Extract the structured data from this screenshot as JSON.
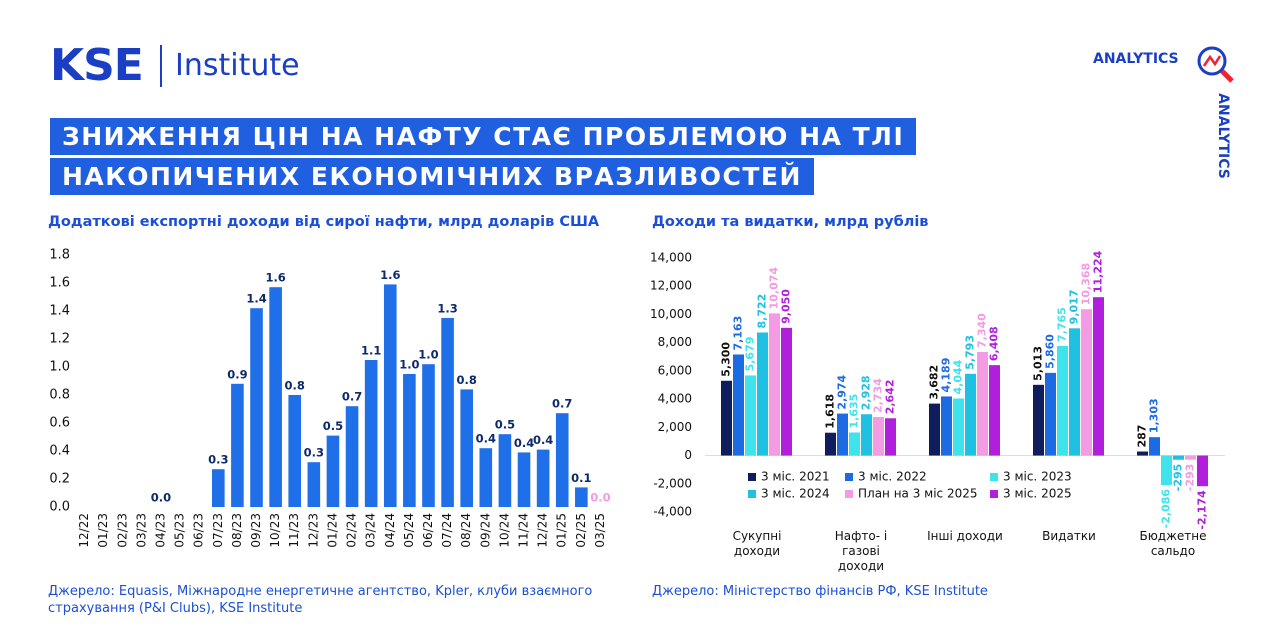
{
  "header": {
    "logo": "KSE",
    "logo_sub": "Institute",
    "badge": "ANALYTICS",
    "title_lines": [
      "ЗНИЖЕННЯ ЦІН НА НАФТУ СТАЄ ПРОБЛЕМОЮ НА ТЛІ",
      "НАКОПИЧЕНИХ ЕКОНОМІЧНИХ ВРАЗЛИВОСТЕЙ"
    ]
  },
  "chart_data": [
    {
      "type": "bar",
      "title": "Додаткові експортні доходи від сирої нафти, млрд доларів США",
      "categories": [
        "12/22",
        "01/23",
        "02/23",
        "03/23",
        "04/23",
        "05/23",
        "06/23",
        "07/23",
        "08/23",
        "09/23",
        "10/23",
        "11/23",
        "12/23",
        "01/24",
        "02/24",
        "03/24",
        "04/24",
        "05/24",
        "06/24",
        "07/24",
        "08/24",
        "09/24",
        "10/24",
        "11/24",
        "12/24",
        "01/25",
        "02/25",
        "03/25"
      ],
      "values": [
        0,
        0,
        0,
        0,
        0,
        0,
        0,
        0.27,
        0.88,
        1.42,
        1.57,
        0.8,
        0.32,
        0.51,
        0.72,
        1.05,
        1.59,
        0.95,
        1.02,
        1.35,
        0.84,
        0.42,
        0.52,
        0.39,
        0.41,
        0.67,
        0.14,
        0
      ],
      "value_labels": [
        null,
        null,
        null,
        null,
        "0.0",
        null,
        null,
        "0.3",
        "0.9",
        "1.4",
        "1.6",
        "0.8",
        "0.3",
        "0.5",
        "0.7",
        "1.1",
        "1.6",
        "1.0",
        "1.0",
        "1.3",
        "0.8",
        "0.4",
        "0.5",
        "0.4",
        "0.4",
        "0.7",
        "0.1",
        "0.0"
      ],
      "color": "#1f6fe8",
      "ylim": [
        0,
        1.8
      ],
      "yticks": [
        {
          "value": 0,
          "label": "0.0"
        },
        0.2,
        0.4,
        0.6,
        0.8,
        {
          "value": 1,
          "label": "1.0"
        },
        1.2,
        1.4,
        1.6,
        1.8
      ],
      "source": "Джерело: Equasis, Міжнародне енергетичне агентство, Kpler, клуби взаємного страхування (P&I Clubs), KSE Institute"
    },
    {
      "type": "grouped_bar",
      "title": "Доходи та видатки, млрд рублів",
      "categories": [
        "Сукупні доходи",
        "Нафто- і газові доходи",
        "Інші доходи",
        "Видатки",
        "Бюджетне сальдо"
      ],
      "series": [
        {
          "name": "3 міс. 2021",
          "color": "#0f1d5c",
          "values": [
            5300,
            1618,
            3682,
            5013,
            287
          ],
          "value_labels": [
            "5,300",
            "1,618",
            "3,682",
            "5,013",
            "287"
          ]
        },
        {
          "name": "3 міс. 2022",
          "color": "#1d6be3",
          "values": [
            7163,
            2974,
            4189,
            5860,
            1303
          ],
          "value_labels": [
            "7,163",
            "2,974",
            "4,189",
            "5,860",
            "1,303"
          ]
        },
        {
          "name": "3 міс. 2023",
          "color": "#3fe3ec",
          "values": [
            5679,
            1635,
            4044,
            7765,
            -2086
          ],
          "value_labels": [
            "5,679",
            "1,635",
            "4,044",
            "7,765",
            "-2,086"
          ]
        },
        {
          "name": "3 міс. 2024",
          "color": "#1fc1e3",
          "values": [
            8722,
            2928,
            5793,
            9017,
            -295
          ],
          "value_labels": [
            "8,722",
            "2,928",
            "5,793",
            "9,017",
            "-295"
          ]
        },
        {
          "name": "План на 3 міс 2025",
          "color": "#f39be3",
          "values": [
            10074,
            2734,
            7340,
            10368,
            -293
          ],
          "value_labels": [
            "10,074",
            "2,734",
            "7,340",
            "10,368",
            "-293"
          ]
        },
        {
          "name": "3 міс. 2025",
          "color": "#b01fdc",
          "values": [
            9050,
            2642,
            6408,
            11224,
            -2174
          ],
          "value_labels": [
            "9,050",
            "2,642",
            "6,408",
            "11,224",
            "-2,174"
          ]
        }
      ],
      "ylim": [
        -4000,
        14000
      ],
      "yticks": [
        {
          "value": -4000,
          "label": "-4,000"
        },
        {
          "value": -2000,
          "label": "-2,000"
        },
        0,
        {
          "value": 2000,
          "label": "2,000"
        },
        {
          "value": 4000,
          "label": "4,000"
        },
        {
          "value": 6000,
          "label": "6,000"
        },
        {
          "value": 8000,
          "label": "8,000"
        },
        {
          "value": 10000,
          "label": "10,000"
        },
        {
          "value": 12000,
          "label": "12,000"
        },
        {
          "value": 14000,
          "label": "14,000"
        }
      ],
      "source": "Джерело: Міністерство фінансів РФ, KSE Institute"
    }
  ]
}
